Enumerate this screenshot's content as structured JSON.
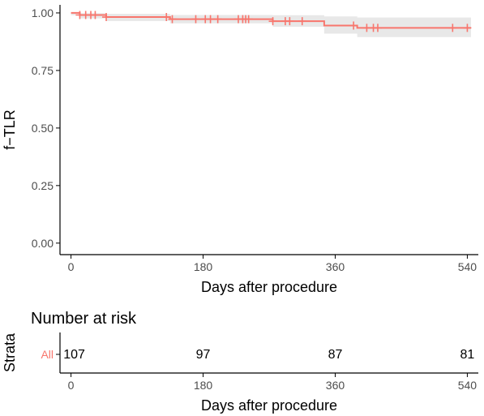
{
  "chart_data": [
    {
      "type": "line",
      "subtype": "kaplan-meier",
      "xlabel": "Days after procedure",
      "ylabel": "f−TLR",
      "xlim": [
        -15,
        555
      ],
      "ylim": [
        -0.05,
        1.035
      ],
      "x_ticks": [
        0,
        180,
        360,
        540
      ],
      "x_tick_labels": [
        "0",
        "180",
        "360",
        "540"
      ],
      "y_ticks": [
        0.0,
        0.25,
        0.5,
        0.75,
        1.0
      ],
      "y_tick_labels": [
        "0.00",
        "0.25",
        "0.50",
        "0.75",
        "1.00"
      ],
      "grid": false,
      "legend": "none",
      "colors": {
        "line": "#f8766d",
        "ci_band": "#e8e8e8",
        "axis": "#000000",
        "tick_text": "#4d4d4d"
      },
      "series": [
        {
          "steps": [
            {
              "x": 0,
              "y": 1.0
            },
            {
              "x": 12,
              "y": 0.991
            },
            {
              "x": 48,
              "y": 0.982
            },
            {
              "x": 135,
              "y": 0.973
            },
            {
              "x": 275,
              "y": 0.964
            },
            {
              "x": 345,
              "y": 0.945
            },
            {
              "x": 390,
              "y": 0.935
            },
            {
              "x": 545,
              "y": 0.935
            }
          ],
          "ci_upper": [
            0.999,
            0.999,
            0.996,
            0.991,
            0.99,
            0.985,
            0.98,
            0.98
          ],
          "ci_lower": [
            0.99,
            0.976,
            0.965,
            0.955,
            0.94,
            0.91,
            0.895,
            0.895
          ],
          "censor_x": [
            12,
            20,
            27,
            33,
            48,
            130,
            138,
            170,
            183,
            190,
            200,
            228,
            234,
            238,
            242,
            275,
            292,
            298,
            315,
            385,
            403,
            412,
            418,
            520,
            540
          ]
        }
      ]
    },
    {
      "type": "table",
      "title": "Number at risk",
      "ylabel": "Strata",
      "xlabel": "Days after procedure",
      "row_label": "All",
      "x": [
        0,
        180,
        360,
        540
      ],
      "values": [
        "107",
        "97",
        "87",
        "81"
      ],
      "x_tick_labels": [
        "0",
        "180",
        "360",
        "540"
      ]
    }
  ]
}
